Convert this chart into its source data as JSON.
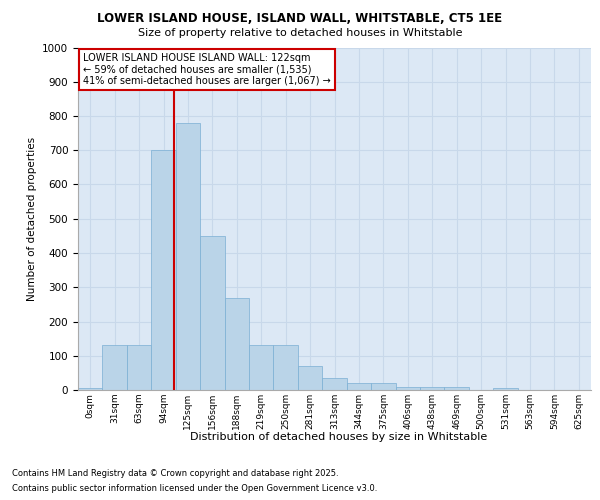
{
  "title1": "LOWER ISLAND HOUSE, ISLAND WALL, WHITSTABLE, CT5 1EE",
  "title2": "Size of property relative to detached houses in Whitstable",
  "xlabel": "Distribution of detached houses by size in Whitstable",
  "ylabel": "Number of detached properties",
  "footnote1": "Contains HM Land Registry data © Crown copyright and database right 2025.",
  "footnote2": "Contains public sector information licensed under the Open Government Licence v3.0.",
  "bin_labels": [
    "0sqm",
    "31sqm",
    "63sqm",
    "94sqm",
    "125sqm",
    "156sqm",
    "188sqm",
    "219sqm",
    "250sqm",
    "281sqm",
    "313sqm",
    "344sqm",
    "375sqm",
    "406sqm",
    "438sqm",
    "469sqm",
    "500sqm",
    "531sqm",
    "563sqm",
    "594sqm",
    "625sqm"
  ],
  "bar_values": [
    5,
    130,
    130,
    700,
    780,
    450,
    270,
    130,
    130,
    70,
    35,
    20,
    20,
    10,
    10,
    10,
    0,
    5,
    0,
    0,
    0
  ],
  "bar_color": "#bad4e8",
  "bar_edge_color": "#7aafd4",
  "grid_color": "#c8d8ea",
  "background_color": "#dce8f5",
  "vline_color": "#cc0000",
  "annotation_text": "LOWER ISLAND HOUSE ISLAND WALL: 122sqm\n← 59% of detached houses are smaller (1,535)\n41% of semi-detached houses are larger (1,067) →",
  "annotation_box_facecolor": "#ffffff",
  "annotation_box_edgecolor": "#cc0000",
  "ylim": [
    0,
    1000
  ],
  "yticks": [
    0,
    100,
    200,
    300,
    400,
    500,
    600,
    700,
    800,
    900,
    1000
  ],
  "vline_x": 3.45
}
